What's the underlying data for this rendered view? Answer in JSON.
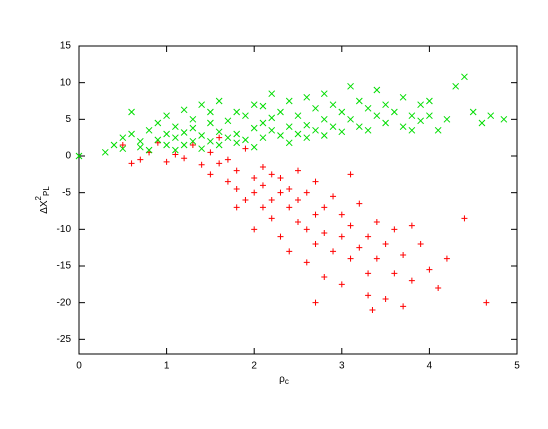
{
  "chart_data": {
    "type": "scatter",
    "xlabel": [
      "ρ",
      "c"
    ],
    "ylabel": [
      "ΔX",
      "2",
      "PL"
    ],
    "xlim": [
      0,
      5
    ],
    "ylim": [
      -27,
      15
    ],
    "xticks": [
      0,
      1,
      2,
      3,
      4,
      5
    ],
    "yticks": [
      15,
      10,
      5,
      0,
      -5,
      -10,
      -15,
      -20,
      -25
    ],
    "series": [
      {
        "color": "#ff0000",
        "marker": "plus",
        "x": [
          0.5,
          0.6,
          0.7,
          0.8,
          0.9,
          1.0,
          1.1,
          1.2,
          1.3,
          1.4,
          1.5,
          1.5,
          1.6,
          1.6,
          1.7,
          1.7,
          1.8,
          1.8,
          1.9,
          1.9,
          2.0,
          2.0,
          2.1,
          2.1,
          2.1,
          2.2,
          2.2,
          2.2,
          2.3,
          2.3,
          2.3,
          2.4,
          2.4,
          2.4,
          2.5,
          2.5,
          2.5,
          2.6,
          2.6,
          2.6,
          2.7,
          2.7,
          2.7,
          2.8,
          2.8,
          2.8,
          2.9,
          2.9,
          3.0,
          3.0,
          3.0,
          3.1,
          3.1,
          3.1,
          3.2,
          3.2,
          3.3,
          3.3,
          3.3,
          3.4,
          3.4,
          3.5,
          3.5,
          3.6,
          3.6,
          3.7,
          3.7,
          3.8,
          3.8,
          3.9,
          4.0,
          4.1,
          4.2,
          4.4,
          4.65,
          2.7,
          3.35,
          2.0,
          1.8
        ],
        "values": [
          1.5,
          -1,
          -0.5,
          0.5,
          1.8,
          -0.8,
          0.2,
          -0.3,
          1.5,
          -1.2,
          0.5,
          -2.5,
          -1,
          2.5,
          -3.5,
          -0.5,
          -4.5,
          -2,
          1,
          -6,
          -3,
          -5,
          -1.5,
          -7,
          -4,
          -2.5,
          -8.5,
          -6,
          -5,
          -3,
          -11,
          -7,
          -4.5,
          -13,
          -6,
          -9,
          -2,
          -10,
          -14.5,
          -5,
          -8,
          -3.5,
          -12,
          -7,
          -16.5,
          -10.5,
          -5.5,
          -13,
          -8,
          -11,
          -17.5,
          -2.5,
          -14,
          -9.5,
          -12.5,
          -6.5,
          -16,
          -19,
          -11,
          -9,
          -14,
          -19.5,
          -12,
          -16,
          -10,
          -20.5,
          -13.5,
          -9.5,
          -17,
          -12,
          -15.5,
          -18,
          -14,
          -8.5,
          -20,
          -20,
          -21,
          -10,
          -7
        ]
      },
      {
        "color": "#00dd00",
        "marker": "cross",
        "x": [
          0,
          0.3,
          0.4,
          0.5,
          0.5,
          0.6,
          0.6,
          0.7,
          0.7,
          0.8,
          0.8,
          0.9,
          0.9,
          1.0,
          1.0,
          1.0,
          1.1,
          1.1,
          1.1,
          1.2,
          1.2,
          1.2,
          1.3,
          1.3,
          1.3,
          1.4,
          1.4,
          1.4,
          1.5,
          1.5,
          1.5,
          1.6,
          1.6,
          1.6,
          1.7,
          1.7,
          1.8,
          1.8,
          1.8,
          1.9,
          1.9,
          2.0,
          2.0,
          2.0,
          2.1,
          2.1,
          2.1,
          2.2,
          2.2,
          2.2,
          2.3,
          2.3,
          2.4,
          2.4,
          2.4,
          2.5,
          2.5,
          2.6,
          2.6,
          2.6,
          2.7,
          2.7,
          2.8,
          2.8,
          2.8,
          2.9,
          2.9,
          3.0,
          3.0,
          3.1,
          3.1,
          3.2,
          3.2,
          3.3,
          3.3,
          3.4,
          3.4,
          3.5,
          3.5,
          3.6,
          3.7,
          3.7,
          3.8,
          3.8,
          3.9,
          3.9,
          4.0,
          4.0,
          4.1,
          4.2,
          4.3,
          4.4,
          4.5,
          4.6,
          4.7,
          4.85
        ],
        "values": [
          0,
          0.5,
          1.5,
          2.5,
          1,
          3,
          6,
          2,
          1.2,
          3.5,
          0.8,
          2.2,
          4.5,
          1.5,
          3,
          5.5,
          2.5,
          0.8,
          4,
          6.3,
          3.2,
          1.5,
          2,
          5,
          3.8,
          7,
          2.8,
          1,
          4.5,
          2,
          6,
          3.3,
          1.5,
          7.5,
          2.5,
          4.8,
          6,
          3,
          1.8,
          5.5,
          2.2,
          7,
          3.8,
          1.2,
          4.5,
          6.8,
          2.5,
          3.5,
          8.5,
          5.2,
          2.8,
          6,
          4,
          7.5,
          1.8,
          5.5,
          3,
          8,
          4.2,
          2.5,
          6.5,
          3.5,
          5,
          8.5,
          2.8,
          4,
          7,
          6,
          3.3,
          9.5,
          5,
          4,
          7.5,
          6.5,
          3.5,
          5.5,
          9,
          4.5,
          7,
          6,
          8,
          4,
          5.5,
          3.5,
          7,
          4.8,
          7.5,
          5.5,
          3.5,
          5,
          9.5,
          10.8,
          6,
          4.5,
          5.5,
          5
        ]
      }
    ]
  }
}
